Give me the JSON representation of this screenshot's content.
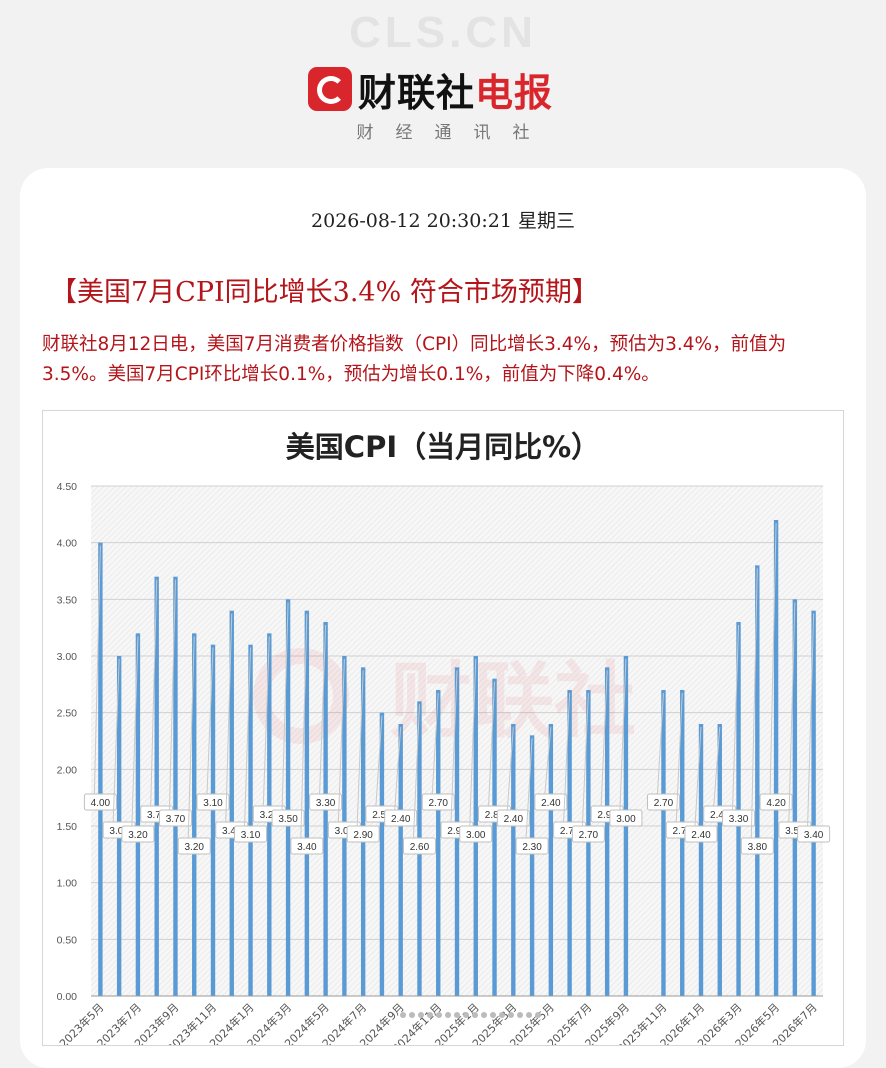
{
  "page": {
    "watermark_text": "CLS.CN",
    "brand": {
      "name_black": "财联社",
      "name_red": "电报",
      "subtitle": "财经通讯社"
    },
    "datetime": "2026-08-12 20:30:21 星期三",
    "headline": "【美国7月CPI同比增长3.4% 符合市场预期】",
    "body": "财联社8月12日电，美国7月消费者价格指数（CPI）同比增长3.4%，预估为3.4%，前值为3.5%。美国7月CPI环比增长0.1%，预估为增长0.1%，前值为下降0.4%。",
    "colors": {
      "brand_red": "#d9262c",
      "headline_red": "#b3151a",
      "bar_blue": "#5b9bd5"
    }
  },
  "chart_data": {
    "type": "bar",
    "title": "美国CPI（当月同比%）",
    "ylim": [
      0,
      4.5
    ],
    "y_ticks": [
      "0.00",
      "0.50",
      "1.00",
      "1.50",
      "2.00",
      "2.50",
      "3.00",
      "3.50",
      "4.00",
      "4.50"
    ],
    "grid": true,
    "categories": [
      "2023年5月",
      "2023年6月",
      "2023年7月",
      "2023年8月",
      "2023年9月",
      "2023年10月",
      "2023年11月",
      "2023年12月",
      "2024年1月",
      "2024年2月",
      "2024年3月",
      "2024年4月",
      "2024年5月",
      "2024年6月",
      "2024年7月",
      "2024年8月",
      "2024年9月",
      "2024年10月",
      "2024年11月",
      "2024年12月",
      "2025年1月",
      "2025年2月",
      "2025年3月",
      "2025年4月",
      "2025年5月",
      "2025年6月",
      "2025年7月",
      "2025年8月",
      "2025年9月",
      "2025年10月",
      "2025年11月",
      "2025年12月",
      "2026年1月",
      "2026年2月",
      "2026年3月",
      "2026年4月",
      "2026年5月",
      "2026年6月",
      "2026年7月"
    ],
    "x_tick_labels": [
      "2023年5月",
      "2023年7月",
      "2023年9月",
      "2023年11月",
      "2024年1月",
      "2024年3月",
      "2024年5月",
      "2024年7月",
      "2024年9月",
      "2024年11月",
      "2025年1月",
      "2025年3月",
      "2025年5月",
      "2025年7月",
      "2025年9月",
      "2025年11月",
      "2026年1月",
      "2026年3月",
      "2026年5月",
      "2026年7月"
    ],
    "values": [
      4.0,
      3.0,
      3.2,
      3.7,
      3.7,
      3.2,
      3.1,
      3.4,
      3.1,
      3.2,
      3.5,
      3.4,
      3.3,
      3.0,
      2.9,
      2.5,
      2.4,
      2.6,
      2.7,
      2.9,
      3.0,
      2.8,
      2.4,
      2.3,
      2.4,
      2.7,
      2.7,
      2.9,
      3.0,
      null,
      2.7,
      2.7,
      2.4,
      2.4,
      3.3,
      3.8,
      4.2,
      3.5,
      3.4
    ],
    "data_labels": [
      "4.00",
      "3.00",
      "3.20",
      "3.70",
      "3.70",
      "3.20",
      "3.10",
      "3.40",
      "3.10",
      "3.20",
      "3.50",
      "3.40",
      "3.30",
      "3.00",
      "2.90",
      "2.50",
      "2.40",
      "2.60",
      "2.70",
      "2.90",
      "3.00",
      "2.80",
      "2.40",
      "2.30",
      "2.40",
      "2.70",
      "2.70",
      "2.90",
      "3.00",
      "",
      "2.70",
      "2.70",
      "2.40",
      "2.40",
      "3.30",
      "3.80",
      "4.20",
      "3.50",
      "3.40"
    ],
    "watermark": "财联社"
  }
}
